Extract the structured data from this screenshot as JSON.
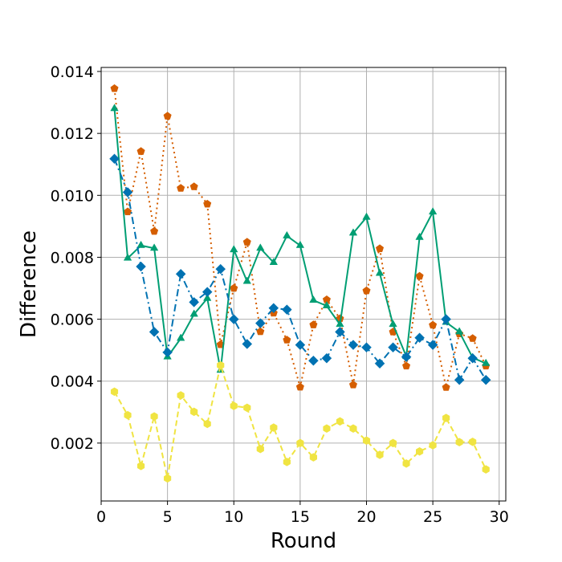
{
  "chart_data": {
    "type": "line",
    "title": "",
    "xlabel": "Round",
    "ylabel": "Difference",
    "xlim": [
      0,
      30.5
    ],
    "ylim": [
      0.00013,
      0.01413
    ],
    "xticks": [
      0,
      5,
      10,
      15,
      20,
      25,
      30
    ],
    "xtick_labels": [
      "0",
      "5",
      "10",
      "15",
      "20",
      "25",
      "30"
    ],
    "yticks": [
      0.002,
      0.004,
      0.006,
      0.008,
      0.01,
      0.012,
      0.014
    ],
    "ytick_labels": [
      "0.002",
      "0.004",
      "0.006",
      "0.008",
      "0.010",
      "0.012",
      "0.014"
    ],
    "grid": true,
    "x": [
      1,
      2,
      3,
      4,
      5,
      6,
      7,
      8,
      9,
      10,
      11,
      12,
      13,
      14,
      15,
      16,
      17,
      18,
      19,
      20,
      21,
      22,
      23,
      24,
      25,
      26,
      27,
      28,
      29
    ],
    "series": [
      {
        "color": "#d55e00",
        "line_style": "dotted",
        "marker": "pentagon",
        "values": [
          0.01345,
          0.00947,
          0.01142,
          0.00884,
          0.01256,
          0.01023,
          0.01028,
          0.00972,
          0.00518,
          0.007,
          0.00849,
          0.0056,
          0.0062,
          0.00533,
          0.00381,
          0.00582,
          0.00663,
          0.00602,
          0.00388,
          0.00692,
          0.00828,
          0.00559,
          0.00449,
          0.00739,
          0.00581,
          0.0038,
          0.00553,
          0.00538,
          0.00449
        ]
      },
      {
        "color": "#009e73",
        "line_style": "solid",
        "marker": "triangle",
        "values": [
          0.0128,
          0.00797,
          0.00838,
          0.00829,
          0.00478,
          0.00538,
          0.00616,
          0.00667,
          0.00435,
          0.00824,
          0.00722,
          0.00829,
          0.00783,
          0.00869,
          0.00838,
          0.00661,
          0.00643,
          0.00583,
          0.00878,
          0.00929,
          0.00748,
          0.00583,
          0.0048,
          0.00864,
          0.00946,
          0.0059,
          0.00559,
          0.00476,
          0.00457
        ]
      },
      {
        "color": "#0072b2",
        "line_style": "dashdot",
        "marker": "diamond",
        "values": [
          0.01118,
          0.0101,
          0.0077,
          0.00559,
          0.00493,
          0.00746,
          0.00655,
          0.00688,
          0.00762,
          0.006,
          0.0052,
          0.00587,
          0.00636,
          0.00631,
          0.00517,
          0.00466,
          0.00474,
          0.00559,
          0.00517,
          0.00509,
          0.00457,
          0.00509,
          0.00478,
          0.0054,
          0.00517,
          0.006,
          0.00404,
          0.00474,
          0.00404
        ]
      },
      {
        "color": "#f0e442",
        "line_style": "dashed",
        "marker": "hexagon",
        "values": [
          0.00366,
          0.0029,
          0.00126,
          0.00286,
          0.00086,
          0.00354,
          0.00301,
          0.00262,
          0.00451,
          0.0032,
          0.00314,
          0.00181,
          0.0025,
          0.00139,
          0.002,
          0.00154,
          0.00247,
          0.0027,
          0.00247,
          0.00208,
          0.00162,
          0.002,
          0.00134,
          0.00173,
          0.00193,
          0.00281,
          0.00203,
          0.00204,
          0.00115
        ]
      }
    ]
  }
}
